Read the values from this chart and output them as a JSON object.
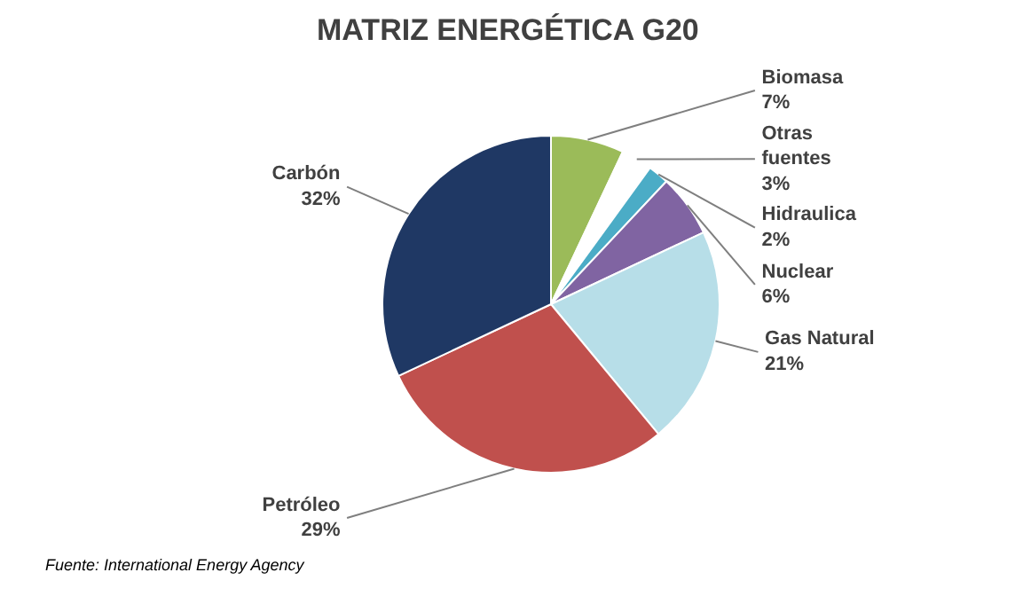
{
  "chart_data": {
    "type": "pie",
    "title": "MATRIZ ENERGÉTICA G20",
    "categories": [
      "Biomasa",
      "Otras fuentes",
      "Hidraulica",
      "Nuclear",
      "Gas Natural",
      "Petróleo",
      "Carbón"
    ],
    "values": [
      7,
      3,
      2,
      6,
      21,
      29,
      32
    ],
    "value_labels": [
      "7%",
      "3%",
      "2%",
      "6%",
      "21%",
      "29%",
      "32%"
    ],
    "colors": [
      "#9bbb59",
      "#ffffff",
      "#4bacc6",
      "#8064a2",
      "#b7dee8",
      "#c0504d",
      "#1f3864"
    ],
    "annotations": [
      "Fuente: International Energy Agency"
    ]
  }
}
